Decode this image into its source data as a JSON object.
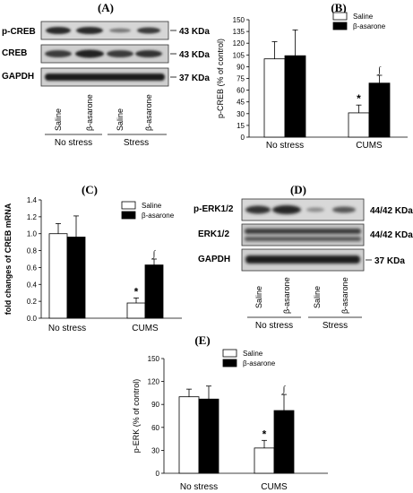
{
  "panels": {
    "A": {
      "label": "(A)",
      "rows": [
        {
          "name": "p-CREB",
          "kda": "43 KDa"
        },
        {
          "name": "CREB",
          "kda": "43 KDa"
        },
        {
          "name": "GAPDH",
          "kda": "37 KDa"
        }
      ],
      "lanes": [
        "Saline",
        "β-asarone",
        "Saline",
        "β-asarone"
      ],
      "groups": [
        "No stress",
        "Stress"
      ]
    },
    "D": {
      "label": "(D)",
      "rows": [
        {
          "name": "p-ERK1/2",
          "kda": "44/42 KDa"
        },
        {
          "name": "ERK1/2",
          "kda": "44/42 KDa"
        },
        {
          "name": "GAPDH",
          "kda": "37 KDa"
        }
      ],
      "lanes": [
        "Saline",
        "β-asarone",
        "Saline",
        "β-asarone"
      ],
      "groups": [
        "No stress",
        "Stress"
      ]
    },
    "B": {
      "label": "(B)"
    },
    "C": {
      "label": "(C)"
    },
    "E": {
      "label": "(E)"
    }
  },
  "chart_data": [
    {
      "id": "B",
      "type": "bar",
      "categories": [
        "No stress",
        "CUMS"
      ],
      "series": [
        {
          "name": "Saline",
          "values": [
            100,
            31
          ],
          "errors": [
            22,
            10
          ],
          "color": "#ffffff"
        },
        {
          "name": "β-asarone",
          "values": [
            104,
            69
          ],
          "errors": [
            33,
            10
          ],
          "color": "#000000"
        }
      ],
      "ylabel": "p-CREB (% of control)",
      "ylim": [
        0,
        150
      ],
      "yticks": [
        "0",
        "15",
        "30",
        "45",
        "60",
        "75",
        "90",
        "105",
        "120",
        "135",
        "150"
      ],
      "annotations": [
        "*",
        "∫"
      ],
      "legend": "top-right"
    },
    {
      "id": "C",
      "type": "bar",
      "categories": [
        "No stress",
        "CUMS"
      ],
      "series": [
        {
          "name": "Saline",
          "values": [
            1.0,
            0.18
          ],
          "errors": [
            0.12,
            0.06
          ],
          "color": "#ffffff"
        },
        {
          "name": "β-asarone",
          "values": [
            0.96,
            0.63
          ],
          "errors": [
            0.25,
            0.07
          ],
          "color": "#000000"
        }
      ],
      "ylabel": "fold changes of CREB mRNA",
      "ylim": [
        0,
        1.4
      ],
      "yticks": [
        "0.0",
        "0.2",
        "0.4",
        "0.6",
        "0.8",
        "1.0",
        "1.2",
        "1.4"
      ],
      "annotations": [
        "*",
        "∫"
      ],
      "legend": "top-right"
    },
    {
      "id": "E",
      "type": "bar",
      "categories": [
        "No stress",
        "CUMS"
      ],
      "series": [
        {
          "name": "Saline",
          "values": [
            100,
            33
          ],
          "errors": [
            10,
            10
          ],
          "color": "#ffffff"
        },
        {
          "name": "β-asarone",
          "values": [
            97,
            82
          ],
          "errors": [
            17,
            21
          ],
          "color": "#000000"
        }
      ],
      "ylabel": "p-ERK (% of control)",
      "ylim": [
        0,
        150
      ],
      "yticks": [
        "0",
        "30",
        "60",
        "90",
        "120",
        "150"
      ],
      "annotations": [
        "*",
        "∫"
      ],
      "legend": "top-right"
    }
  ]
}
